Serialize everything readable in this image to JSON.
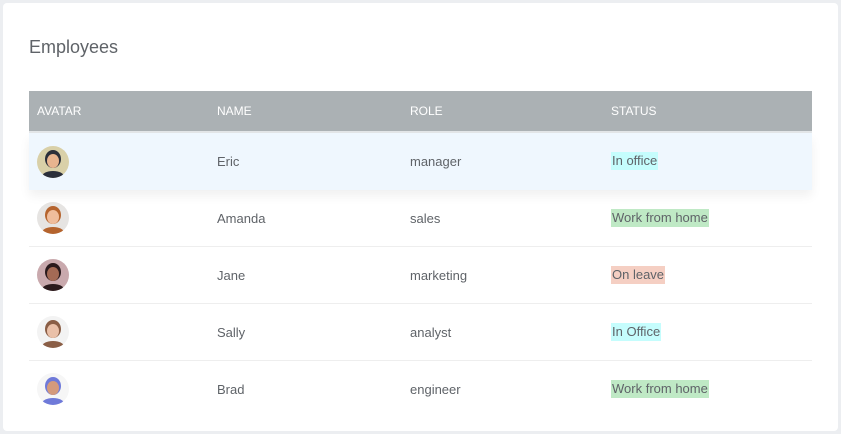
{
  "title": "Employees",
  "columns": [
    "AVATAR",
    "NAME",
    "ROLE",
    "STATUS"
  ],
  "status_colors": {
    "In office": "#c5fdfd",
    "Work from home": "#bfe9c5",
    "On leave": "#f5cfc3"
  },
  "rows": [
    {
      "name": "Eric",
      "role": "manager",
      "status": "In office",
      "color": "#c5fdfd",
      "avatar": [
        "#d9d0a8",
        "#2b2f3a",
        "#e8b48f"
      ]
    },
    {
      "name": "Amanda",
      "role": "sales",
      "status": "Work from home",
      "color": "#bfe9c5",
      "avatar": [
        "#e6e4e2",
        "#b5642e",
        "#efbd9c"
      ]
    },
    {
      "name": "Jane",
      "role": "marketing",
      "status": "On leave",
      "color": "#f5cfc3",
      "avatar": [
        "#c9a9ad",
        "#2a1a1c",
        "#a46a55"
      ]
    },
    {
      "name": "Sally",
      "role": "analyst",
      "status": "In Office",
      "color": "#c5fdfd",
      "avatar": [
        "#f3f3f3",
        "#8a5e46",
        "#eac0a8"
      ]
    },
    {
      "name": "Brad",
      "role": "engineer",
      "status": "Work from home",
      "color": "#bfe9c5",
      "avatar": [
        "#f6f6f6",
        "#6f7ad9",
        "#d49a7c"
      ]
    }
  ]
}
